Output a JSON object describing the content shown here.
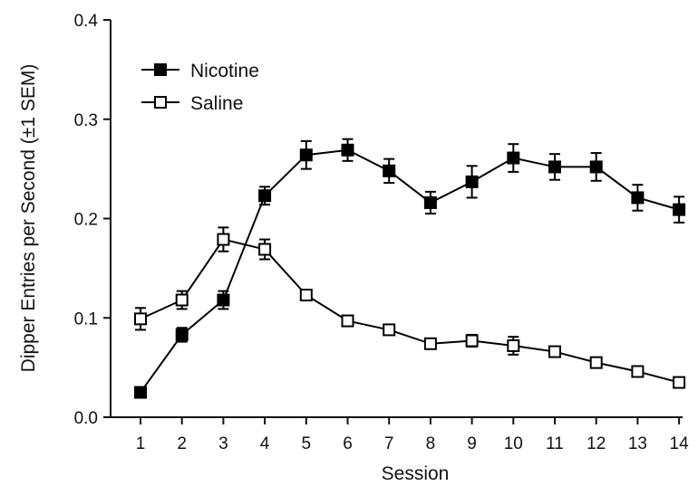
{
  "chart_data": {
    "type": "line",
    "xlabel": "Session",
    "ylabel": "Dipper Entries per Second (±1  SEM)",
    "x": [
      1,
      2,
      3,
      4,
      5,
      6,
      7,
      8,
      9,
      10,
      11,
      12,
      13,
      14
    ],
    "xlim": [
      0.5,
      14.5
    ],
    "ylim": [
      0,
      0.4
    ],
    "y_ticks": [
      "0.0",
      "0.1",
      "0.2",
      "0.3",
      "0.4"
    ],
    "x_ticks": [
      "1",
      "2",
      "3",
      "4",
      "5",
      "6",
      "7",
      "8",
      "9",
      "10",
      "11",
      "12",
      "13",
      "14"
    ],
    "grid": false,
    "legend_position": "top-left",
    "series": [
      {
        "name": "Nicotine",
        "marker": "filled-square",
        "color": "#000000",
        "values": [
          0.025,
          0.083,
          0.118,
          0.223,
          0.264,
          0.269,
          0.248,
          0.216,
          0.237,
          0.261,
          0.252,
          0.252,
          0.221,
          0.209
        ],
        "sem": [
          0.002,
          0.007,
          0.009,
          0.009,
          0.014,
          0.011,
          0.012,
          0.011,
          0.016,
          0.014,
          0.013,
          0.014,
          0.013,
          0.013
        ]
      },
      {
        "name": "Saline",
        "marker": "open-square",
        "color": "#000000",
        "values": [
          0.099,
          0.118,
          0.179,
          0.169,
          0.123,
          0.097,
          0.088,
          0.074,
          0.077,
          0.072,
          0.066,
          0.055,
          0.046,
          0.035
        ],
        "sem": [
          0.011,
          0.009,
          0.012,
          0.01,
          0.005,
          0.005,
          0.004,
          0.004,
          0.006,
          0.009,
          0.004,
          0.003,
          0.003,
          0.003
        ]
      }
    ]
  }
}
